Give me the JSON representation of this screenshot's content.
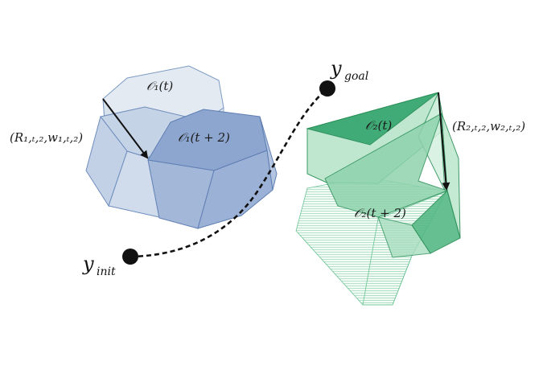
{
  "labels": {
    "o1_t": "𝒪₁(t)",
    "o1_t2": "𝒪₁(t + 2)",
    "o2_t": "𝒪₂(t)",
    "o2_t2": "𝒪₂(t + 2)",
    "y_goal": "y",
    "y_goal_sub": "goal",
    "y_init": "y",
    "y_init_sub": "init",
    "transform1": "(R₁,ₜ,₂,w₁,ₜ,₂)",
    "transform2": "(R₂,ₜ,₂,w₂,ₜ,₂)"
  },
  "colors": {
    "blue_light": "#dfe7ef",
    "blue_mid": "#bccbe0",
    "blue_dark": "#8ea7cf",
    "blue_edge": "#6e8cbd",
    "green_dark": "#2f9d63",
    "green_mid": "#7fcfa3",
    "green_light": "#bfe8d0",
    "green_edge": "#2a8f58",
    "path": "#111111"
  }
}
